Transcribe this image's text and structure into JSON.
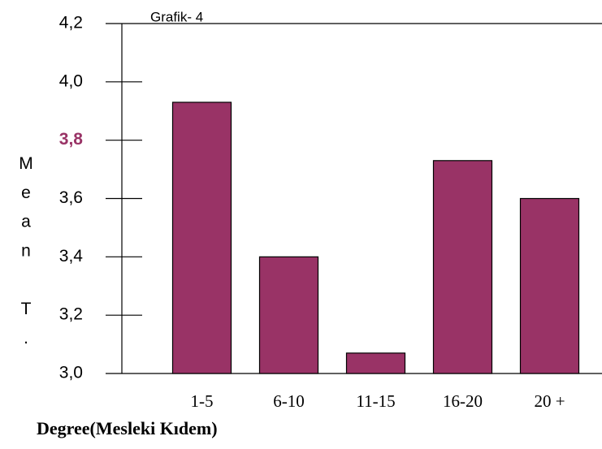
{
  "chart_data": {
    "type": "bar",
    "title": "Grafik- 4",
    "x_label": "Degree(Mesleki Kıdem)",
    "y_label": "Mean T.",
    "categories": [
      "1-5",
      "6-10",
      "11-15",
      "16-20",
      "20 +"
    ],
    "values": [
      3.93,
      3.4,
      3.07,
      3.73,
      3.6
    ],
    "color": "#993366",
    "ylim": [
      3.0,
      4.2
    ],
    "yticks": [
      {
        "value": 3.0,
        "label": "3,0"
      },
      {
        "value": 3.2,
        "label": "3,2"
      },
      {
        "value": 3.4,
        "label": "3,4"
      },
      {
        "value": 3.6,
        "label": "3,6"
      },
      {
        "value": 3.8,
        "label": "3,8"
      },
      {
        "value": 4.0,
        "label": "4,0"
      },
      {
        "value": 4.2,
        "label": "4,2"
      }
    ]
  }
}
